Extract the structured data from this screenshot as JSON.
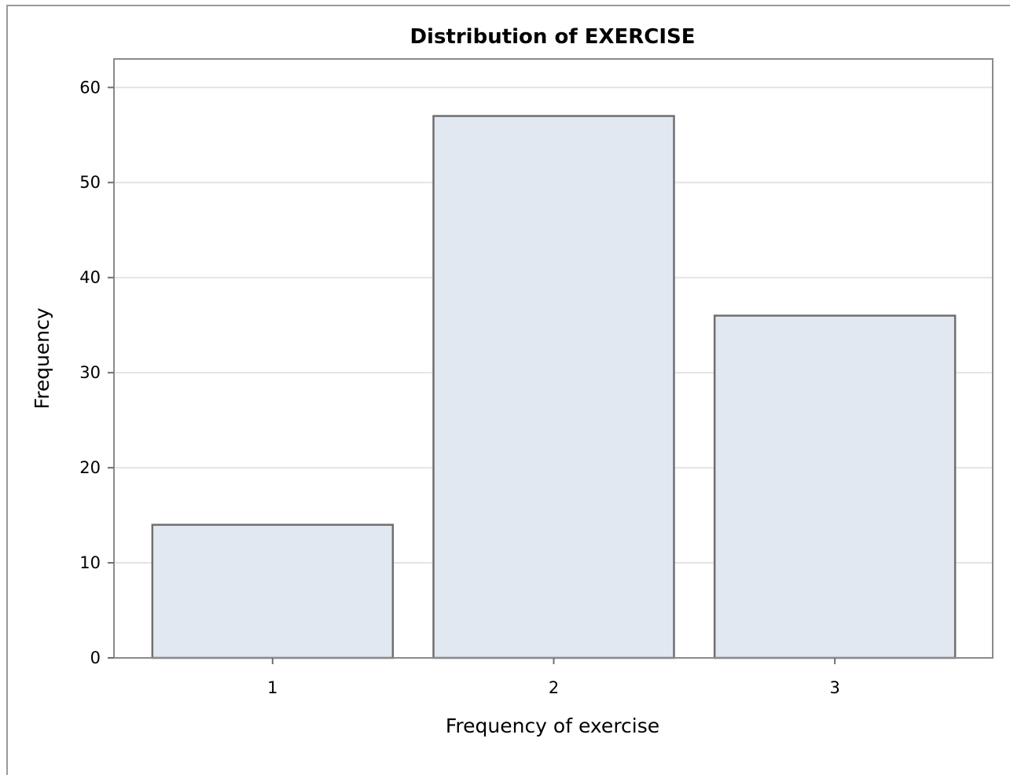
{
  "chart_data": {
    "type": "bar",
    "title": "Distribution of EXERCISE",
    "xlabel": "Frequency of exercise",
    "ylabel": "Frequency",
    "categories": [
      "1",
      "2",
      "3"
    ],
    "values": [
      14,
      57,
      36
    ],
    "ylim": [
      0,
      63
    ],
    "yticks": [
      0,
      10,
      20,
      30,
      40,
      50,
      60
    ],
    "grid": true,
    "bar_fill": "#e1e8f1",
    "bar_stroke": "#6f6f6f"
  }
}
